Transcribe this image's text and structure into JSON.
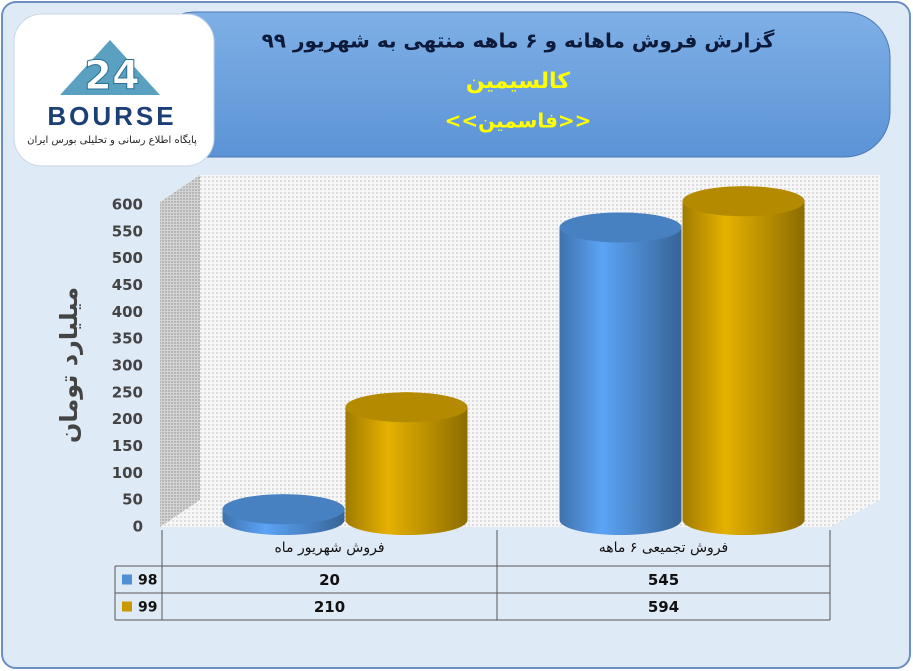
{
  "logo": {
    "number": "24",
    "name": "BOURSE",
    "tagline": "پایگاه اطلاع رسانی و تحلیلی بورس ایران"
  },
  "chart_data": {
    "type": "cylinder-bar",
    "title": [
      "گزارش فروش ماهانه و ۶ ماهه منتهی به شهریور ۹۹",
      "کالسیمین",
      "<<فاسمین>>"
    ],
    "y_label": "میلیارد تومان",
    "categories": [
      "فروش شهریور  ماه",
      "فروش تجمیعی ۶ ماهه"
    ],
    "series": [
      {
        "name": "98",
        "color": "#4f8fd6",
        "values": [
          20,
          545
        ]
      },
      {
        "name": "99",
        "color": "#c89a00",
        "values": [
          210,
          594
        ]
      }
    ],
    "ylim": [
      0,
      600
    ],
    "yticks": [
      0,
      50,
      100,
      150,
      200,
      250,
      300,
      350,
      400,
      450,
      500,
      550,
      600
    ],
    "data_table": true
  }
}
